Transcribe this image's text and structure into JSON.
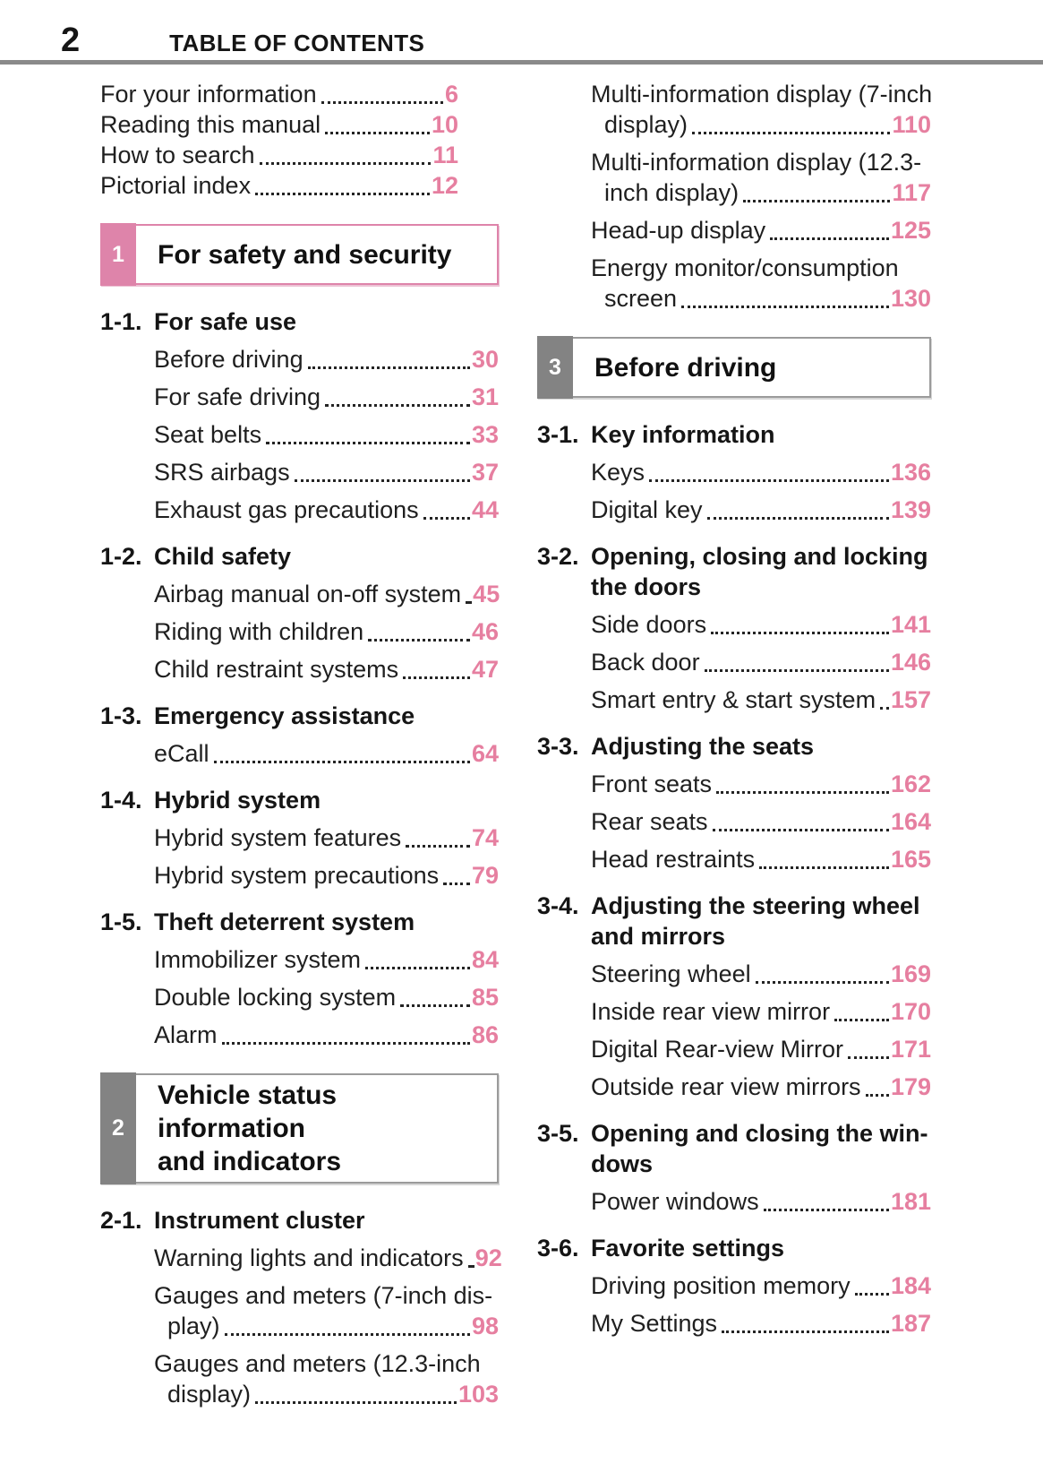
{
  "header": {
    "page_number": "2",
    "title": "TABLE OF CONTENTS"
  },
  "colors": {
    "accent": "#e67fa0",
    "tab_pink": "#de84aa",
    "tab_gray": "#838383",
    "box_gray": "#9b9b9b",
    "rule": "#8a8a8a"
  },
  "columns": {
    "left": [
      {
        "type": "entries",
        "variant": "front",
        "items": [
          {
            "text": "For your information",
            "page": "6"
          },
          {
            "text": "Reading this manual",
            "page": "10"
          },
          {
            "text": "How to search",
            "page": "11"
          },
          {
            "text": "Pictorial index",
            "page": "12"
          }
        ]
      },
      {
        "type": "chapter",
        "num": "1",
        "title": "For safety and security",
        "theme": "pink"
      },
      {
        "type": "group",
        "num": "1-1.",
        "title": "For safe use",
        "items": [
          {
            "text": "Before driving",
            "page": "30"
          },
          {
            "text": "For safe driving",
            "page": "31"
          },
          {
            "text": "Seat belts",
            "page": "33"
          },
          {
            "text": "SRS airbags",
            "page": "37"
          },
          {
            "text": "Exhaust gas precautions",
            "page": "44"
          }
        ]
      },
      {
        "type": "group",
        "num": "1-2.",
        "title": "Child safety",
        "items": [
          {
            "text": "Airbag manual on-off system",
            "page": "45"
          },
          {
            "text": "Riding with children",
            "page": "46"
          },
          {
            "text": "Child restraint systems",
            "page": "47"
          }
        ]
      },
      {
        "type": "group",
        "num": "1-3.",
        "title": "Emergency assistance",
        "items": [
          {
            "text": "eCall",
            "page": "64"
          }
        ]
      },
      {
        "type": "group",
        "num": "1-4.",
        "title": "Hybrid system",
        "items": [
          {
            "text": "Hybrid system features",
            "page": "74"
          },
          {
            "text": "Hybrid system precautions",
            "page": "79"
          }
        ]
      },
      {
        "type": "group",
        "num": "1-5.",
        "title": "Theft deterrent system",
        "items": [
          {
            "text": "Immobilizer system",
            "page": "84"
          },
          {
            "text": "Double locking system",
            "page": "85"
          },
          {
            "text": "Alarm",
            "page": "86"
          }
        ]
      },
      {
        "type": "chapter",
        "num": "2",
        "title": "Vehicle status information\nand indicators",
        "theme": "gray"
      },
      {
        "type": "group",
        "num": "2-1.",
        "title": "Instrument cluster",
        "items": [
          {
            "text": "Warning lights and indicators",
            "page": "92"
          },
          {
            "text": "Gauges and meters (7-inch dis-",
            "text2": "play)",
            "page": "98"
          },
          {
            "text": "Gauges and meters (12.3-inch",
            "text2": "display)",
            "page": "103"
          }
        ]
      }
    ],
    "right": [
      {
        "type": "entries",
        "variant": "sub",
        "items": [
          {
            "text": "Multi-information display (7-inch",
            "text2": "display)",
            "page": "110"
          },
          {
            "text": "Multi-information display (12.3-",
            "text2": "inch display)",
            "page": "117"
          },
          {
            "text": "Head-up display",
            "page": "125"
          },
          {
            "text": "Energy monitor/consumption",
            "text2": "screen",
            "page": "130"
          }
        ]
      },
      {
        "type": "chapter",
        "num": "3",
        "title": "Before driving",
        "theme": "gray"
      },
      {
        "type": "group",
        "num": "3-1.",
        "title": "Key information",
        "items": [
          {
            "text": "Keys",
            "page": "136"
          },
          {
            "text": "Digital key",
            "page": "139"
          }
        ]
      },
      {
        "type": "group",
        "num": "3-2.",
        "title": "Opening, closing and locking\nthe doors",
        "items": [
          {
            "text": "Side doors",
            "page": "141"
          },
          {
            "text": "Back door",
            "page": "146"
          },
          {
            "text": "Smart entry & start system",
            "page": "157"
          }
        ]
      },
      {
        "type": "group",
        "num": "3-3.",
        "title": "Adjusting the seats",
        "items": [
          {
            "text": "Front seats",
            "page": "162"
          },
          {
            "text": "Rear seats",
            "page": "164"
          },
          {
            "text": "Head restraints",
            "page": "165"
          }
        ]
      },
      {
        "type": "group",
        "num": "3-4.",
        "title": "Adjusting the steering wheel\nand mirrors",
        "items": [
          {
            "text": "Steering wheel",
            "page": "169"
          },
          {
            "text": "Inside rear view mirror",
            "page": "170"
          },
          {
            "text": "Digital Rear-view Mirror",
            "page": "171"
          },
          {
            "text": "Outside rear view mirrors",
            "page": "179"
          }
        ]
      },
      {
        "type": "group",
        "num": "3-5.",
        "title": "Opening and closing the win-\ndows",
        "items": [
          {
            "text": "Power windows",
            "page": "181"
          }
        ]
      },
      {
        "type": "group",
        "num": "3-6.",
        "title": "Favorite settings",
        "items": [
          {
            "text": "Driving position memory",
            "page": "184"
          },
          {
            "text": "My Settings",
            "page": "187"
          }
        ]
      }
    ]
  }
}
